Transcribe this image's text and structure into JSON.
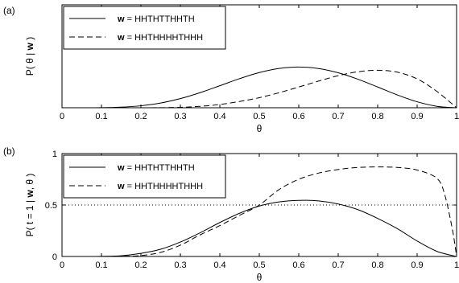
{
  "chart_data": [
    {
      "type": "line",
      "panel_label": "(a)",
      "xlabel": "θ",
      "ylabel": {
        "prefix": "P( θ | ",
        "bold": "w",
        "suffix": " )"
      },
      "xlim": [
        0,
        1
      ],
      "ylim": [
        0,
        3.3
      ],
      "x_ticks": [
        "0",
        "0.1",
        "0.2",
        "0.3",
        "0.4",
        "0.5",
        "0.6",
        "0.7",
        "0.8",
        "0.9",
        "1"
      ],
      "y_ticks": [],
      "grid": false,
      "legend_position": "top-left",
      "series": [
        {
          "name": {
            "bold": "w",
            "rest": " = HHTHTTHHTH"
          },
          "style": "solid",
          "x": [
            0,
            0.05,
            0.1,
            0.15,
            0.2,
            0.25,
            0.3,
            0.35,
            0.4,
            0.45,
            0.5,
            0.55,
            0.6,
            0.65,
            0.7,
            0.75,
            0.8,
            0.85,
            0.9,
            0.95,
            1
          ],
          "y": [
            0,
            0.0001,
            0.0031,
            0.0187,
            0.0629,
            0.1511,
            0.2921,
            0.483,
            0.7059,
            0.9323,
            1.1279,
            1.2606,
            1.3063,
            1.2577,
            1.121,
            0.9142,
            0.6644,
            0.41,
            0.1913,
            0.0464,
            0
          ]
        },
        {
          "name": {
            "bold": "w",
            "rest": " = HHTHHHHTHHH"
          },
          "style": "dashed",
          "x": [
            0,
            0.05,
            0.1,
            0.15,
            0.2,
            0.25,
            0.3,
            0.35,
            0.4,
            0.45,
            0.5,
            0.55,
            0.6,
            0.65,
            0.7,
            0.75,
            0.8,
            0.85,
            0.9,
            0.95,
            1
          ],
          "y": [
            0,
            0,
            0,
            0.0001,
            0.0004,
            0.003,
            0.0133,
            0.0449,
            0.1049,
            0.2006,
            0.3223,
            0.481,
            0.6635,
            0.8539,
            1.0276,
            1.1531,
            1.202,
            1.1397,
            0.9247,
            0.5245,
            0
          ]
        }
      ]
    },
    {
      "type": "line",
      "panel_label": "(b)",
      "xlabel": "θ",
      "ylabel": {
        "prefix": "P( t = 1 | ",
        "bold": "w",
        "suffix": ", θ )"
      },
      "xlim": [
        0,
        1
      ],
      "ylim": [
        0,
        1
      ],
      "x_ticks": [
        "0",
        "0.1",
        "0.2",
        "0.3",
        "0.4",
        "0.5",
        "0.6",
        "0.7",
        "0.8",
        "0.9",
        "1"
      ],
      "y_ticks": [
        "0",
        "0.5",
        "1"
      ],
      "grid": false,
      "legend_position": "top-left",
      "reference_line_y": 0.5,
      "series": [
        {
          "name": {
            "bold": "w",
            "rest": " = HHTHTTHHTH"
          },
          "style": "solid",
          "x": [
            0,
            0.05,
            0.1,
            0.15,
            0.2,
            0.25,
            0.3,
            0.35,
            0.4,
            0.45,
            0.5,
            0.55,
            0.6,
            0.65,
            0.7,
            0.75,
            0.8,
            0.85,
            0.9,
            0.95,
            1
          ],
          "y": [
            0,
            0,
            0.001,
            0.007,
            0.03,
            0.07,
            0.14,
            0.23,
            0.33,
            0.42,
            0.49,
            0.53,
            0.545,
            0.54,
            0.51,
            0.455,
            0.37,
            0.27,
            0.15,
            0.05,
            0
          ]
        },
        {
          "name": {
            "bold": "w",
            "rest": " = HHTHHHHTHHH"
          },
          "style": "dashed",
          "x": [
            0,
            0.05,
            0.1,
            0.15,
            0.2,
            0.25,
            0.3,
            0.35,
            0.4,
            0.45,
            0.5,
            0.55,
            0.6,
            0.65,
            0.7,
            0.75,
            0.8,
            0.85,
            0.9,
            0.95,
            0.97,
            0.99,
            1
          ],
          "y": [
            0,
            0,
            0,
            0.002,
            0.009,
            0.04,
            0.11,
            0.21,
            0.3,
            0.4,
            0.5,
            0.65,
            0.75,
            0.81,
            0.845,
            0.865,
            0.87,
            0.865,
            0.84,
            0.76,
            0.6,
            0.25,
            0
          ]
        }
      ]
    }
  ]
}
